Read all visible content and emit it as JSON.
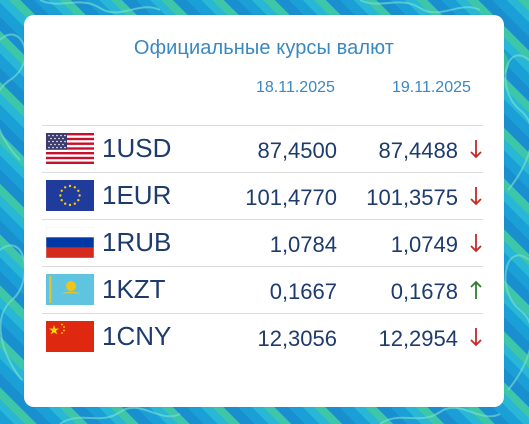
{
  "widget": {
    "title": "Официальные курсы валют",
    "dates": [
      "18.11.2025",
      "19.11.2025"
    ]
  },
  "rates": [
    {
      "code": "1USD",
      "flag_icon": "usa-flag-icon",
      "v1": "87,4500",
      "v2": "87,4488",
      "trend": "down"
    },
    {
      "code": "1EUR",
      "flag_icon": "eu-flag-icon",
      "v1": "101,4770",
      "v2": "101,3575",
      "trend": "down"
    },
    {
      "code": "1RUB",
      "flag_icon": "russia-flag-icon",
      "v1": "1,0784",
      "v2": "1,0749",
      "trend": "down"
    },
    {
      "code": "1KZT",
      "flag_icon": "kazakhstan-flag-icon",
      "v1": "0,1667",
      "v2": "0,1678",
      "trend": "up"
    },
    {
      "code": "1CNY",
      "flag_icon": "china-flag-icon",
      "v1": "12,3056",
      "v2": "12,2954",
      "trend": "down"
    }
  ],
  "colors": {
    "accent_blue": "#3a88c2",
    "text_navy": "#1d3b6d",
    "down_red": "#c62828",
    "up_green": "#2e7d32",
    "background_blue": "#1a9fd6"
  }
}
